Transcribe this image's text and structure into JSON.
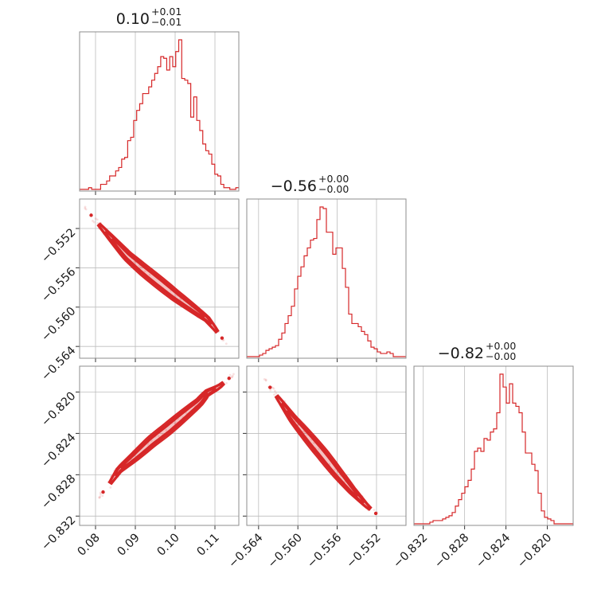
{
  "chart_data": {
    "type": "corner",
    "color": "#d62728",
    "parameters": [
      {
        "title_value": "0.10",
        "title_sup": "+0.01",
        "title_sub": "−0.01",
        "range": [
          0.076,
          0.116
        ],
        "ticks": [
          0.08,
          0.09,
          0.1,
          0.11
        ],
        "tick_labels": [
          "0.08",
          "0.09",
          "0.10",
          "0.11"
        ]
      },
      {
        "title_value": "−0.56",
        "title_sup": "+0.00",
        "title_sub": "−0.00",
        "range": [
          -0.5652,
          -0.549
        ],
        "ticks": [
          -0.564,
          -0.56,
          -0.556,
          -0.552
        ],
        "tick_labels": [
          "−0.564",
          "−0.560",
          "−0.556",
          "−0.552"
        ]
      },
      {
        "title_value": "−0.82",
        "title_sup": "+0.00",
        "title_sub": "−0.00",
        "range": [
          -0.8329,
          -0.8175
        ],
        "ticks": [
          -0.832,
          -0.828,
          -0.824,
          -0.82
        ],
        "tick_labels": [
          "−0.832",
          "−0.828",
          "−0.824",
          "−0.820"
        ]
      }
    ],
    "histograms": [
      {
        "param": 0,
        "counts": [
          1,
          1,
          1,
          2,
          1,
          1,
          1,
          4,
          4,
          6,
          9,
          9,
          12,
          14,
          19,
          20,
          30,
          32,
          42,
          48,
          52,
          58,
          58,
          62,
          66,
          70,
          74,
          80,
          79,
          72,
          80,
          74,
          83,
          90,
          67,
          66,
          64,
          44,
          56,
          42,
          36,
          28,
          24,
          22,
          16,
          10,
          9,
          4,
          2,
          2,
          1,
          1,
          2
        ]
      },
      {
        "param": 1,
        "counts": [
          1,
          1,
          1,
          1,
          2,
          3,
          5,
          6,
          7,
          8,
          12,
          16,
          22,
          27,
          33,
          44,
          52,
          58,
          65,
          70,
          75,
          76,
          88,
          96,
          95,
          80,
          80,
          66,
          70,
          70,
          57,
          45,
          28,
          22,
          22,
          20,
          17,
          15,
          11,
          7,
          6,
          4,
          3,
          3,
          4,
          3,
          1,
          1,
          1,
          1
        ]
      },
      {
        "param": 2,
        "counts": [
          1,
          1,
          1,
          1,
          1,
          2,
          3,
          3,
          3,
          4,
          5,
          6,
          8,
          12,
          16,
          20,
          24,
          28,
          35,
          46,
          48,
          46,
          54,
          53,
          58,
          60,
          70,
          94,
          86,
          76,
          88,
          76,
          74,
          70,
          58,
          45,
          45,
          38,
          34,
          20,
          9,
          5,
          4,
          3,
          1,
          1,
          1,
          1,
          1,
          1
        ]
      }
    ],
    "pairs": [
      {
        "x_param": 0,
        "y_param": 1,
        "x": [
          0.077,
          0.08,
          0.084,
          0.088,
          0.092,
          0.096,
          0.1,
          0.104,
          0.108,
          0.11,
          0.113
        ],
        "y": [
          -0.5497,
          -0.5512,
          -0.553,
          -0.5548,
          -0.5562,
          -0.5575,
          -0.5588,
          -0.56,
          -0.5612,
          -0.5622,
          -0.5638
        ]
      },
      {
        "x_param": 0,
        "y_param": 2,
        "x": [
          0.08,
          0.083,
          0.086,
          0.09,
          0.094,
          0.098,
          0.102,
          0.106,
          0.108,
          0.111,
          0.115
        ],
        "y": [
          -0.8305,
          -0.8292,
          -0.8275,
          -0.8262,
          -0.8248,
          -0.8236,
          -0.8223,
          -0.821,
          -0.8201,
          -0.8195,
          -0.8182
        ]
      },
      {
        "x_param": 1,
        "y_param": 2,
        "x": [
          -0.5635,
          -0.562,
          -0.5605,
          -0.559,
          -0.5575,
          -0.556,
          -0.5545,
          -0.553,
          -0.5515
        ],
        "y": [
          -0.8187,
          -0.8206,
          -0.8226,
          -0.8243,
          -0.826,
          -0.8278,
          -0.8295,
          -0.831,
          -0.8322
        ]
      }
    ]
  }
}
